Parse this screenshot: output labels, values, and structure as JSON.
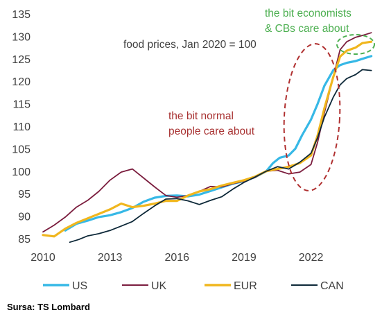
{
  "chart_data": {
    "type": "line",
    "subtitle": "food prices, Jan 2020 = 100",
    "xlabel": "",
    "ylabel": "",
    "xlim": [
      2010,
      2024.9
    ],
    "ylim": [
      85,
      135
    ],
    "x_ticks": [
      "2010",
      "2013",
      "2016",
      "2019",
      "2022"
    ],
    "y_ticks": [
      "85",
      "90",
      "95",
      "100",
      "105",
      "110",
      "115",
      "120",
      "125",
      "130",
      "135"
    ],
    "grid": false,
    "legend_position": "bottom",
    "annotations": [
      {
        "text_lines": [
          "the bit normal",
          "people care about"
        ],
        "color": "#a83232"
      },
      {
        "text_lines": [
          "the bit economists",
          "& CBs care about"
        ],
        "color": "#4caf50"
      }
    ],
    "series": [
      {
        "name": "US",
        "color": "#36b8e6",
        "x": [
          2011.0,
          2011.5,
          2012.0,
          2012.5,
          2013.0,
          2013.5,
          2014.0,
          2014.5,
          2015.0,
          2015.5,
          2016.0,
          2016.5,
          2017.0,
          2017.5,
          2018.0,
          2018.5,
          2019.0,
          2019.5,
          2020.0,
          2020.3,
          2020.6,
          2021.0,
          2021.3,
          2021.6,
          2022.0,
          2022.3,
          2022.6,
          2023.0,
          2023.3,
          2023.6,
          2024.0,
          2024.3,
          2024.7
        ],
        "y": [
          86.8,
          88.3,
          89.0,
          89.8,
          90.2,
          90.9,
          91.8,
          93.2,
          94.1,
          94.5,
          94.6,
          94.4,
          94.8,
          95.6,
          96.4,
          97.2,
          97.8,
          98.7,
          100.0,
          101.8,
          103.0,
          103.5,
          105.0,
          108.0,
          111.5,
          115.0,
          119.0,
          122.5,
          123.6,
          124.1,
          124.5,
          125.0,
          125.6
        ]
      },
      {
        "name": "UK",
        "color": "#7b1d3e",
        "x": [
          2010.0,
          2010.5,
          2011.0,
          2011.5,
          2012.0,
          2012.5,
          2013.0,
          2013.5,
          2014.0,
          2014.5,
          2015.0,
          2015.5,
          2016.0,
          2016.5,
          2017.0,
          2017.5,
          2018.0,
          2018.5,
          2019.0,
          2019.5,
          2020.0,
          2020.5,
          2021.0,
          2021.5,
          2022.0,
          2022.3,
          2022.6,
          2023.0,
          2023.3,
          2023.6,
          2024.0,
          2024.3,
          2024.7
        ],
        "y": [
          86.5,
          88.0,
          89.8,
          92.0,
          93.5,
          95.5,
          98.0,
          99.8,
          100.5,
          98.5,
          96.5,
          94.6,
          94.2,
          94.6,
          95.5,
          96.6,
          96.5,
          97.2,
          97.8,
          98.6,
          100.0,
          100.2,
          99.4,
          99.8,
          101.5,
          106.5,
          113.0,
          121.0,
          127.0,
          128.8,
          129.8,
          130.2,
          130.8
        ]
      },
      {
        "name": "EUR",
        "color": "#f0b61e",
        "x": [
          2010.0,
          2010.5,
          2011.0,
          2011.5,
          2012.0,
          2012.5,
          2013.0,
          2013.5,
          2014.0,
          2014.5,
          2015.0,
          2015.5,
          2016.0,
          2016.5,
          2017.0,
          2017.5,
          2018.0,
          2018.5,
          2019.0,
          2019.5,
          2020.0,
          2020.5,
          2021.0,
          2021.5,
          2022.0,
          2022.3,
          2022.6,
          2023.0,
          2023.3,
          2023.6,
          2024.0,
          2024.3,
          2024.7
        ],
        "y": [
          85.8,
          85.5,
          87.2,
          88.5,
          89.5,
          90.5,
          91.5,
          92.8,
          92.0,
          92.3,
          92.8,
          93.4,
          93.4,
          94.6,
          95.5,
          96.0,
          96.8,
          97.4,
          98.0,
          98.8,
          100.0,
          100.5,
          101.0,
          101.8,
          103.5,
          108.0,
          114.0,
          121.0,
          125.5,
          126.8,
          127.5,
          128.5,
          128.8
        ]
      },
      {
        "name": "CAN",
        "color": "#0d2838",
        "x": [
          2011.2,
          2011.6,
          2012.0,
          2012.5,
          2013.0,
          2013.5,
          2014.0,
          2014.5,
          2015.0,
          2015.5,
          2016.0,
          2016.5,
          2017.0,
          2017.5,
          2018.0,
          2018.5,
          2019.0,
          2019.5,
          2020.0,
          2020.5,
          2021.0,
          2021.5,
          2022.0,
          2022.3,
          2022.6,
          2023.0,
          2023.3,
          2023.6,
          2024.0,
          2024.3,
          2024.7
        ],
        "y": [
          84.2,
          84.8,
          85.6,
          86.1,
          86.8,
          87.8,
          88.8,
          90.6,
          92.3,
          93.8,
          93.9,
          93.4,
          92.6,
          93.5,
          94.3,
          96.0,
          97.5,
          98.7,
          100.0,
          101.0,
          100.5,
          102.0,
          104.0,
          107.5,
          112.0,
          116.5,
          119.2,
          120.6,
          121.5,
          122.6,
          122.4
        ]
      }
    ]
  },
  "source": "Sursa: TS Lombard"
}
